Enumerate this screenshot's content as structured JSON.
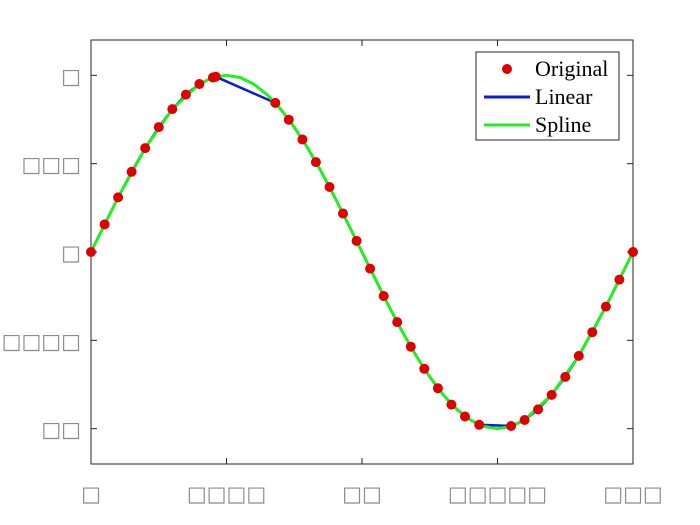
{
  "chart_data": {
    "type": "line",
    "title": "",
    "xlabel": "",
    "ylabel": "",
    "xlim": [
      0,
      6.2832
    ],
    "ylim": [
      -1.2,
      1.2
    ],
    "xticks": {
      "values": [
        0,
        1.5708,
        3.1416,
        4.7124,
        6.2832
      ],
      "labels": [
        "□",
        "□□□□",
        "□□",
        "□□□□□",
        "□□□"
      ]
    },
    "yticks": {
      "values": [
        1,
        0.5,
        0,
        -0.5,
        -1
      ],
      "labels": [
        "□",
        "□□□",
        "□",
        "□□□□",
        "□□"
      ]
    },
    "grid": false,
    "legend_position": "top-right",
    "series": [
      {
        "name": "Original",
        "style": "markers",
        "color": "#e00000",
        "x": [
          0,
          0.1571,
          0.3142,
          0.4712,
          0.6283,
          0.7854,
          0.9425,
          1.0996,
          1.2566,
          1.4137,
          1.4451,
          2.1363,
          2.2934,
          2.4504,
          2.6075,
          2.7646,
          2.9217,
          3.0788,
          3.2358,
          3.3929,
          3.55,
          3.7071,
          3.8642,
          4.0212,
          4.1783,
          4.3354,
          4.5,
          4.8695,
          5.0266,
          5.1836,
          5.3407,
          5.4978,
          5.6549,
          5.8119,
          5.969,
          6.1261,
          6.2832
        ],
        "y": [
          0,
          0.156,
          0.309,
          0.454,
          0.588,
          0.707,
          0.809,
          0.891,
          0.951,
          0.988,
          0.992,
          0.844,
          0.749,
          0.637,
          0.509,
          0.368,
          0.218,
          0.063,
          -0.094,
          -0.249,
          -0.397,
          -0.536,
          -0.661,
          -0.771,
          -0.864,
          -0.931,
          -0.978,
          -0.985,
          -0.951,
          -0.891,
          -0.809,
          -0.707,
          -0.588,
          -0.454,
          -0.309,
          -0.156,
          0
        ]
      },
      {
        "name": "Linear",
        "style": "line",
        "color": "#0a1fd4",
        "x": [
          0,
          0.1571,
          0.3142,
          0.4712,
          0.6283,
          0.7854,
          0.9425,
          1.0996,
          1.2566,
          1.4137,
          1.4451,
          2.1363,
          2.2934,
          2.4504,
          2.6075,
          2.7646,
          2.9217,
          3.0788,
          3.2358,
          3.3929,
          3.55,
          3.7071,
          3.8642,
          4.0212,
          4.1783,
          4.3354,
          4.5,
          4.8695,
          5.0266,
          5.1836,
          5.3407,
          5.4978,
          5.6549,
          5.8119,
          5.969,
          6.1261,
          6.2832
        ],
        "y": [
          0,
          0.156,
          0.309,
          0.454,
          0.588,
          0.707,
          0.809,
          0.891,
          0.951,
          0.988,
          0.992,
          0.844,
          0.749,
          0.637,
          0.509,
          0.368,
          0.218,
          0.063,
          -0.094,
          -0.249,
          -0.397,
          -0.536,
          -0.661,
          -0.771,
          -0.864,
          -0.931,
          -0.978,
          -0.985,
          -0.951,
          -0.891,
          -0.809,
          -0.707,
          -0.588,
          -0.454,
          -0.309,
          -0.156,
          0
        ]
      },
      {
        "name": "Spline",
        "style": "line",
        "color": "#22ee22",
        "x": [
          0,
          0.3142,
          0.6283,
          0.9425,
          1.2566,
          1.4137,
          1.5708,
          1.7279,
          1.885,
          2.042,
          2.1991,
          2.3562,
          2.5133,
          2.6704,
          2.8274,
          2.9845,
          3.1416,
          3.2987,
          3.4558,
          3.6128,
          3.7699,
          3.927,
          4.0841,
          4.2412,
          4.3982,
          4.5553,
          4.7124,
          4.8695,
          5.0266,
          5.3407,
          5.6549,
          5.969,
          6.2832
        ],
        "y": [
          0,
          0.309,
          0.588,
          0.809,
          0.951,
          0.988,
          1.0,
          0.988,
          0.951,
          0.891,
          0.809,
          0.707,
          0.588,
          0.454,
          0.309,
          0.156,
          0,
          -0.156,
          -0.309,
          -0.454,
          -0.588,
          -0.707,
          -0.809,
          -0.891,
          -0.951,
          -0.988,
          -1.0,
          -0.988,
          -0.951,
          -0.809,
          -0.588,
          -0.309,
          0
        ]
      }
    ]
  }
}
